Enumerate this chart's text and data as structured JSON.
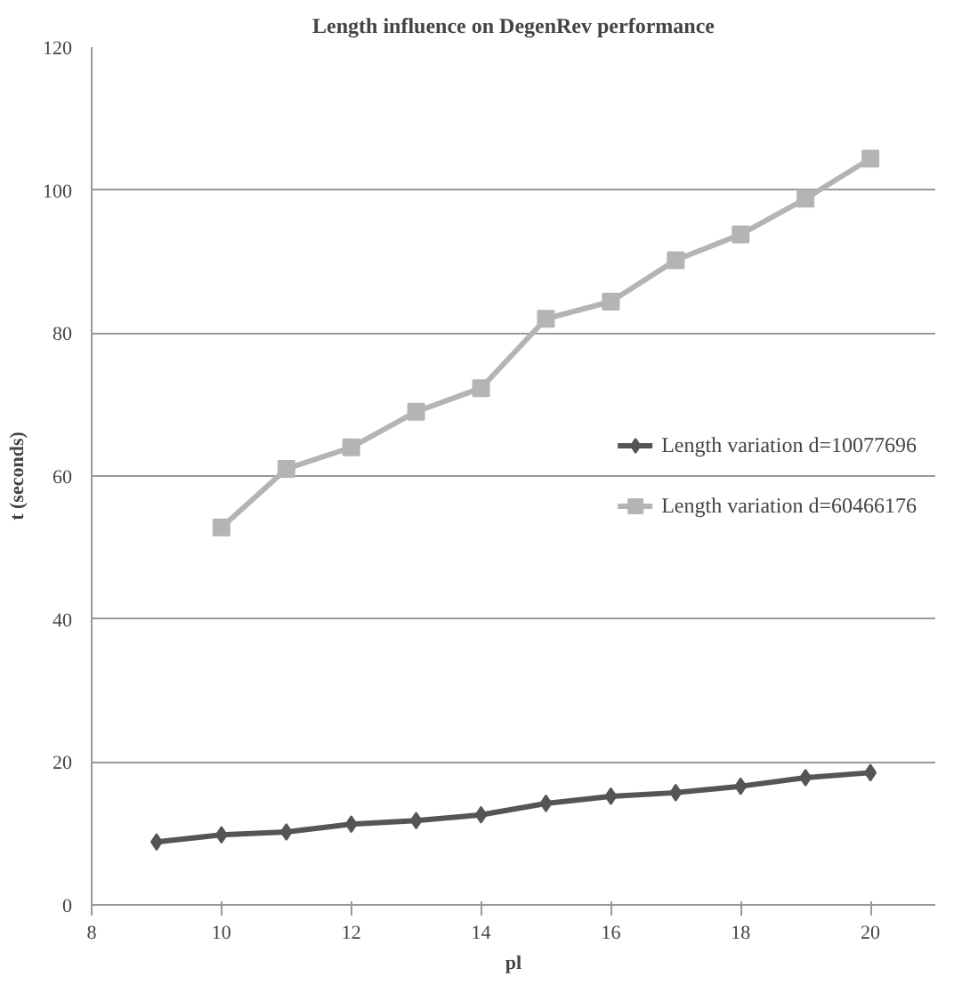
{
  "chart_data": {
    "type": "line",
    "title": "Length influence on DegenRev performance",
    "xlabel": "pl",
    "ylabel": "t (seconds)",
    "xlim": [
      8,
      21
    ],
    "xticks": [
      8,
      10,
      12,
      14,
      16,
      18,
      20
    ],
    "ylim": [
      0,
      120
    ],
    "yticks": [
      0,
      20,
      40,
      60,
      80,
      100,
      120
    ],
    "grid": "y",
    "legend": "right",
    "line_style": "solid",
    "series": [
      {
        "name": "Length variation d=10077696",
        "color": "#555555",
        "marker": "diamond",
        "x": [
          9,
          10,
          11,
          12,
          13,
          14,
          15,
          16,
          17,
          18,
          19,
          20
        ],
        "values": [
          8.8,
          9.8,
          10.2,
          11.3,
          11.8,
          12.6,
          14.2,
          15.2,
          15.7,
          16.6,
          17.8,
          18.5
        ]
      },
      {
        "name": "Length variation d=60466176",
        "color": "#b4b4b4",
        "marker": "square",
        "x": [
          10,
          11,
          12,
          13,
          14,
          15,
          16,
          17,
          18,
          19,
          20
        ],
        "values": [
          52.8,
          61,
          64,
          69,
          72.3,
          82,
          84.4,
          90.2,
          93.8,
          98.8,
          104.4
        ]
      }
    ]
  }
}
